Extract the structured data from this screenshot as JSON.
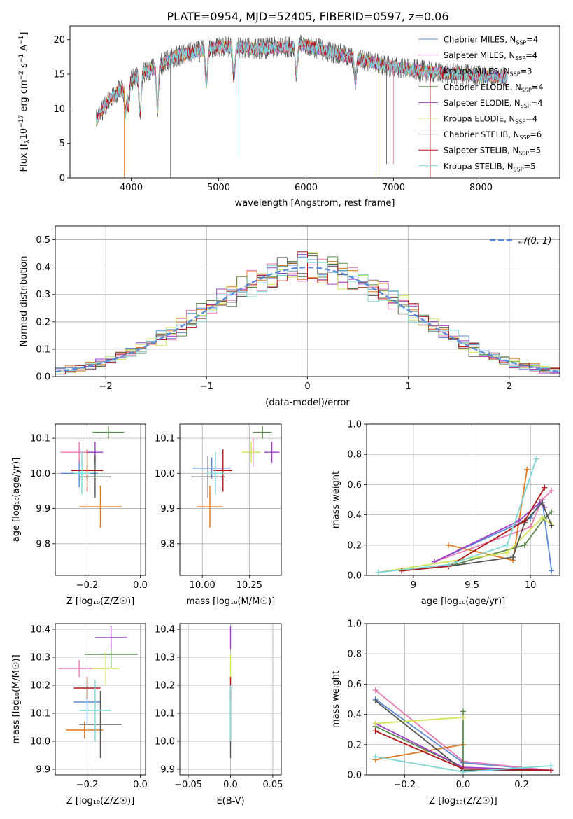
{
  "figure": {
    "title": "PLATE=0954, MJD=52405, FIBERID=0597, z=0.06"
  },
  "series_styles": [
    {
      "name": "Chabrier MILES, N_SSP=4",
      "label_main": "Chabrier MILES, N",
      "label_sub": "SSP",
      "label_tail": "=4",
      "color": "#5b8bd6"
    },
    {
      "name": "Salpeter MILES, N_SSP=4",
      "label_main": "Salpeter MILES, N",
      "label_sub": "SSP",
      "label_tail": "=4",
      "color": "#e87db4"
    },
    {
      "name": "Kroupa MILES, N_SSP=3",
      "label_main": "Kroupa MILES, N",
      "label_sub": "SSP",
      "label_tail": "=3",
      "color": "#e07a22"
    },
    {
      "name": "Chabrier ELODIE, N_SSP=4",
      "label_main": "Chabrier ELODIE, N",
      "label_sub": "SSP",
      "label_tail": "=4",
      "color": "#5d8a50"
    },
    {
      "name": "Salpeter ELODIE, N_SSP=4",
      "label_main": "Salpeter ELODIE, N",
      "label_sub": "SSP",
      "label_tail": "=4",
      "color": "#a040c8"
    },
    {
      "name": "Kroupa ELODIE, N_SSP=4",
      "label_main": "Kroupa ELODIE, N",
      "label_sub": "SSP",
      "label_tail": "=4",
      "color": "#d4e35a"
    },
    {
      "name": "Chabrier STELIB, N_SSP=6",
      "label_main": "Chabrier STELIB, N",
      "label_sub": "SSP",
      "label_tail": "=6",
      "color": "#555555"
    },
    {
      "name": "Salpeter STELIB, N_SSP=5",
      "label_main": "Salpeter STELIB, N",
      "label_sub": "SSP",
      "label_tail": "=5",
      "color": "#b01818"
    },
    {
      "name": "Kroupa STELIB, N_SSP=5",
      "label_main": "Kroupa STELIB, N",
      "label_sub": "SSP",
      "label_tail": "=5",
      "color": "#7fd6d6"
    }
  ],
  "chart_data": [
    {
      "id": "spectrum",
      "type": "line",
      "xlabel": "wavelength [Angstrom, rest frame]",
      "ylabel_main": "Flux [f",
      "ylabel_sub": "λ",
      "ylabel_rest": "10",
      "ylabel_exp1": "−17",
      "ylabel_mid": " erg cm",
      "ylabel_exp2": "−2",
      "ylabel_mid2": " s",
      "ylabel_exp3": "−1",
      "ylabel_end": " A",
      "ylabel_exp4": "−1",
      "ylabel_close": "]",
      "xlim": [
        3300,
        8900
      ],
      "ylim": [
        0,
        22
      ],
      "xticks": [
        4000,
        5000,
        6000,
        7000,
        8000
      ],
      "yticks": [
        0,
        5,
        10,
        15,
        20
      ],
      "legend_loc": "upper right",
      "spectrum_x_range": [
        3600,
        8300
      ],
      "spectrum_anchors": [
        [
          3600,
          8.5
        ],
        [
          3700,
          10.5
        ],
        [
          3800,
          12.0
        ],
        [
          3900,
          13.0
        ],
        [
          4000,
          14.2
        ],
        [
          4200,
          15.5
        ],
        [
          4500,
          17.5
        ],
        [
          5000,
          19.0
        ],
        [
          5500,
          18.7
        ],
        [
          6000,
          19.2
        ],
        [
          6500,
          17.5
        ],
        [
          7000,
          16.0
        ],
        [
          7500,
          15.2
        ],
        [
          8000,
          14.8
        ],
        [
          8300,
          14.6
        ]
      ],
      "dips": [
        [
          3934,
          4.0
        ],
        [
          3969,
          3.5
        ],
        [
          4102,
          5.5
        ],
        [
          4300,
          6.0
        ],
        [
          4861,
          5.0
        ],
        [
          5175,
          4.5
        ],
        [
          5890,
          4.0
        ],
        [
          6563,
          3.5
        ]
      ]
    },
    {
      "id": "residuals",
      "type": "histogram",
      "xlabel": "(data-model)/error",
      "ylabel": "Normed distribution",
      "xlim": [
        -2.5,
        2.5
      ],
      "ylim": [
        0,
        0.55
      ],
      "xticks": [
        -2,
        -1,
        0,
        1,
        2
      ],
      "yticks": [
        0.0,
        0.1,
        0.2,
        0.3,
        0.4,
        0.5
      ],
      "grid": true,
      "legend_label": "𝒩(0, 1)",
      "legend_color": "#5b8bd6",
      "bin_width": 0.1
    },
    {
      "id": "age-vs-Z",
      "type": "scatter",
      "xlabel": "Z [log₁₀(Z/Z☉)]",
      "ylabel": "age  [log₁₀(age/yr)]",
      "xlim": [
        -0.32,
        0.02
      ],
      "ylim": [
        9.71,
        10.14
      ],
      "xticks": [
        -0.2,
        0.0
      ],
      "yticks": [
        9.8,
        9.9,
        10.0,
        10.1
      ],
      "grid": true,
      "points": [
        {
          "series": 0,
          "x": -0.23,
          "y": 10.0,
          "xerr": 0.07,
          "yerr": 0.04
        },
        {
          "series": 1,
          "x": -0.23,
          "y": 10.06,
          "xerr": 0.07,
          "yerr": 0.03
        },
        {
          "series": 2,
          "x": -0.15,
          "y": 9.905,
          "xerr": 0.08,
          "yerr": 0.06
        },
        {
          "series": 3,
          "x": -0.12,
          "y": 10.117,
          "xerr": 0.06,
          "yerr": 0.018
        },
        {
          "series": 4,
          "x": -0.17,
          "y": 10.06,
          "xerr": 0.03,
          "yerr": 0.03
        },
        {
          "series": 5,
          "x": -0.2,
          "y": 10.008,
          "xerr": 0.03,
          "yerr": 0.02
        },
        {
          "series": 6,
          "x": -0.17,
          "y": 9.99,
          "xerr": 0.06,
          "yerr": 0.06
        },
        {
          "series": 7,
          "x": -0.2,
          "y": 10.008,
          "xerr": 0.06,
          "yerr": 0.06
        },
        {
          "series": 8,
          "x": -0.22,
          "y": 10.0,
          "xerr": 0.03,
          "yerr": 0.06
        }
      ]
    },
    {
      "id": "age-vs-mass",
      "type": "scatter",
      "xlabel": "mass [log₁₀(M/M☉)]",
      "ylabel": "",
      "xlim": [
        9.88,
        10.42
      ],
      "ylim": [
        9.71,
        10.14
      ],
      "xticks": [
        10.0,
        10.25
      ],
      "yticks": [
        9.8,
        9.9,
        10.0,
        10.1
      ],
      "grid": true,
      "points": [
        {
          "series": 0,
          "x": 10.05,
          "y": 10.015,
          "xerr": 0.1,
          "yerr": 0.03
        },
        {
          "series": 1,
          "x": 10.27,
          "y": 10.06,
          "xerr": 0.03,
          "yerr": 0.04
        },
        {
          "series": 2,
          "x": 10.04,
          "y": 9.905,
          "xerr": 0.07,
          "yerr": 0.06
        },
        {
          "series": 3,
          "x": 10.32,
          "y": 10.117,
          "xerr": 0.05,
          "yerr": 0.018
        },
        {
          "series": 4,
          "x": 10.37,
          "y": 10.06,
          "xerr": 0.04,
          "yerr": 0.03
        },
        {
          "series": 5,
          "x": 10.26,
          "y": 10.06,
          "xerr": 0.05,
          "yerr": 0.03
        },
        {
          "series": 6,
          "x": 10.03,
          "y": 9.99,
          "xerr": 0.09,
          "yerr": 0.06
        },
        {
          "series": 7,
          "x": 10.11,
          "y": 10.008,
          "xerr": 0.05,
          "yerr": 0.06
        },
        {
          "series": 8,
          "x": 10.07,
          "y": 10.0,
          "xerr": 0.05,
          "yerr": 0.06
        }
      ]
    },
    {
      "id": "massweight-vs-age",
      "type": "line",
      "xlabel": "age  [log₁₀(age/yr)]",
      "ylabel": "mass weight",
      "xlim": [
        8.6,
        10.25
      ],
      "ylim": [
        0,
        1
      ],
      "xticks": [
        9.0,
        9.5,
        10.0
      ],
      "yticks": [
        0.0,
        0.2,
        0.4,
        0.6,
        0.8,
        1.0
      ],
      "grid": true,
      "series": [
        {
          "series": 0,
          "x": [
            9.18,
            10.0,
            10.1,
            10.18
          ],
          "y": [
            0.09,
            0.38,
            0.5,
            0.03
          ]
        },
        {
          "series": 1,
          "x": [
            9.18,
            10.0,
            10.1,
            10.18
          ],
          "y": [
            0.09,
            0.32,
            0.5,
            0.56
          ]
        },
        {
          "series": 2,
          "x": [
            9.3,
            9.85,
            9.97
          ],
          "y": [
            0.2,
            0.1,
            0.7
          ]
        },
        {
          "series": 3,
          "x": [
            9.3,
            9.95,
            10.12,
            10.18
          ],
          "y": [
            0.06,
            0.2,
            0.38,
            0.42
          ]
        },
        {
          "series": 4,
          "x": [
            9.18,
            9.9,
            10.08,
            10.12
          ],
          "y": [
            0.09,
            0.36,
            0.48,
            0.45
          ]
        },
        {
          "series": 5,
          "x": [
            8.7,
            9.8,
            10.1,
            10.18
          ],
          "y": [
            0.02,
            0.15,
            0.38,
            0.34
          ]
        },
        {
          "series": 6,
          "x": [
            8.9,
            9.3,
            9.85,
            9.95,
            10.1,
            10.18
          ],
          "y": [
            0.03,
            0.06,
            0.12,
            0.35,
            0.48,
            0.33
          ]
        },
        {
          "series": 7,
          "x": [
            8.9,
            9.3,
            9.95,
            10.12
          ],
          "y": [
            0.03,
            0.06,
            0.36,
            0.58
          ]
        },
        {
          "series": 8,
          "x": [
            8.7,
            9.3,
            9.8,
            10.05
          ],
          "y": [
            0.02,
            0.07,
            0.2,
            0.77
          ]
        }
      ]
    },
    {
      "id": "mass-vs-Z",
      "type": "scatter",
      "xlabel": "Z [log₁₀(Z/Z☉)]",
      "ylabel": "mass [log₁₀(M/M☉)]",
      "xlim": [
        -0.32,
        0.02
      ],
      "ylim": [
        9.88,
        10.42
      ],
      "xticks": [
        -0.2,
        0.0
      ],
      "yticks": [
        9.9,
        10.0,
        10.1,
        10.2,
        10.3,
        10.4
      ],
      "grid": true,
      "points": [
        {
          "series": 0,
          "x": -0.2,
          "y": 10.14,
          "xerr": 0.05,
          "yerr": 0.08
        },
        {
          "series": 1,
          "x": -0.23,
          "y": 10.26,
          "xerr": 0.08,
          "yerr": 0.03
        },
        {
          "series": 2,
          "x": -0.21,
          "y": 10.04,
          "xerr": 0.07,
          "yerr": 0.03
        },
        {
          "series": 3,
          "x": -0.11,
          "y": 10.31,
          "xerr": 0.1,
          "yerr": 0.05
        },
        {
          "series": 4,
          "x": -0.11,
          "y": 10.37,
          "xerr": 0.06,
          "yerr": 0.04
        },
        {
          "series": 5,
          "x": -0.13,
          "y": 10.26,
          "xerr": 0.05,
          "yerr": 0.06
        },
        {
          "series": 6,
          "x": -0.15,
          "y": 10.06,
          "xerr": 0.08,
          "yerr": 0.12
        },
        {
          "series": 7,
          "x": -0.2,
          "y": 10.19,
          "xerr": 0.05,
          "yerr": 0.04
        },
        {
          "series": 8,
          "x": -0.17,
          "y": 10.11,
          "xerr": 0.06,
          "yerr": 0.11
        }
      ]
    },
    {
      "id": "mass-vs-EBV",
      "type": "scatter",
      "xlabel": "E(B-V)",
      "ylabel": "",
      "xlim": [
        -0.06,
        0.06
      ],
      "ylim": [
        9.88,
        10.42
      ],
      "xticks": [
        -0.05,
        0.0,
        0.05
      ],
      "yticks": [
        9.9,
        10.0,
        10.1,
        10.2,
        10.3,
        10.4
      ],
      "grid": true,
      "points": [
        {
          "series": 4,
          "x": 0.0,
          "y": 10.37,
          "xerr": 0.0,
          "yerr": 0.04
        },
        {
          "series": 5,
          "x": 0.0,
          "y": 10.26,
          "xerr": 0.0,
          "yerr": 0.05
        },
        {
          "series": 7,
          "x": 0.0,
          "y": 10.19,
          "xerr": 0.0,
          "yerr": 0.04
        },
        {
          "series": 6,
          "x": 0.0,
          "y": 10.06,
          "xerr": 0.0,
          "yerr": 0.12
        },
        {
          "series": 8,
          "x": 0.0,
          "y": 10.1,
          "xerr": 0.0,
          "yerr": 0.1
        }
      ]
    },
    {
      "id": "massweight-vs-Z",
      "type": "line",
      "xlabel": "Z [log₁₀(Z/Z☉)]",
      "ylabel": "mass weight",
      "xlim": [
        -0.33,
        0.33
      ],
      "ylim": [
        0,
        1
      ],
      "xticks": [
        -0.2,
        0.0,
        0.2
      ],
      "yticks": [
        0.0,
        0.2,
        0.4,
        0.6,
        0.8,
        1.0
      ],
      "grid": true,
      "series": [
        {
          "series": 0,
          "x": [
            -0.3,
            0.0,
            0.3
          ],
          "y": [
            0.5,
            0.08,
            0.03
          ]
        },
        {
          "series": 1,
          "x": [
            -0.3,
            0.0,
            0.3
          ],
          "y": [
            0.56,
            0.09,
            0.03
          ]
        },
        {
          "series": 2,
          "x": [
            -0.3,
            0.0
          ],
          "y": [
            0.1,
            0.2
          ]
        },
        {
          "series": 3,
          "x": [
            -0.3,
            0.0,
            0.0
          ],
          "y": [
            0.32,
            0.05,
            0.42
          ]
        },
        {
          "series": 4,
          "x": [
            -0.3,
            0.0,
            0.3
          ],
          "y": [
            0.34,
            0.05,
            0.03
          ]
        },
        {
          "series": 5,
          "x": [
            -0.3,
            0.0
          ],
          "y": [
            0.34,
            0.38
          ]
        },
        {
          "series": 6,
          "x": [
            -0.3,
            0.0,
            0.3
          ],
          "y": [
            0.49,
            0.03,
            0.03
          ]
        },
        {
          "series": 7,
          "x": [
            -0.3,
            0.0,
            0.3
          ],
          "y": [
            0.29,
            0.04,
            0.03
          ]
        },
        {
          "series": 8,
          "x": [
            -0.3,
            0.0,
            0.3
          ],
          "y": [
            0.12,
            0.02,
            0.06
          ]
        }
      ]
    }
  ]
}
